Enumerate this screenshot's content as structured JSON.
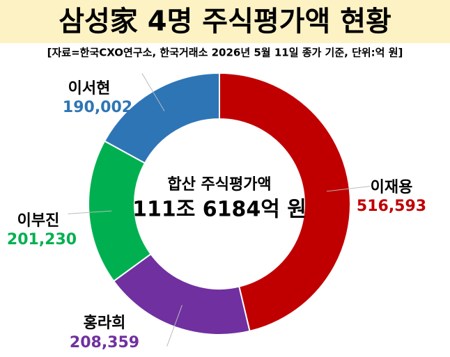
{
  "chart_data": {
    "type": "donut",
    "title": "삼성家 4명 주식평가액 현황",
    "subtitle": "[자료=한국CXO연구소, 한국거래소 2026년 5월 11일 종가 기준, 단위:억 원]",
    "center_title": "합산 주식평가액",
    "center_value": "111조 6184억 원",
    "categories": [
      "이재용",
      "홍라희",
      "이부진",
      "이서현"
    ],
    "values": [
      516593,
      208359,
      201230,
      190002
    ],
    "value_labels": [
      "516,593",
      "208,359",
      "201,230",
      "190,002"
    ],
    "colors": [
      "#c00000",
      "#7030a0",
      "#00b050",
      "#2e75b6"
    ]
  }
}
